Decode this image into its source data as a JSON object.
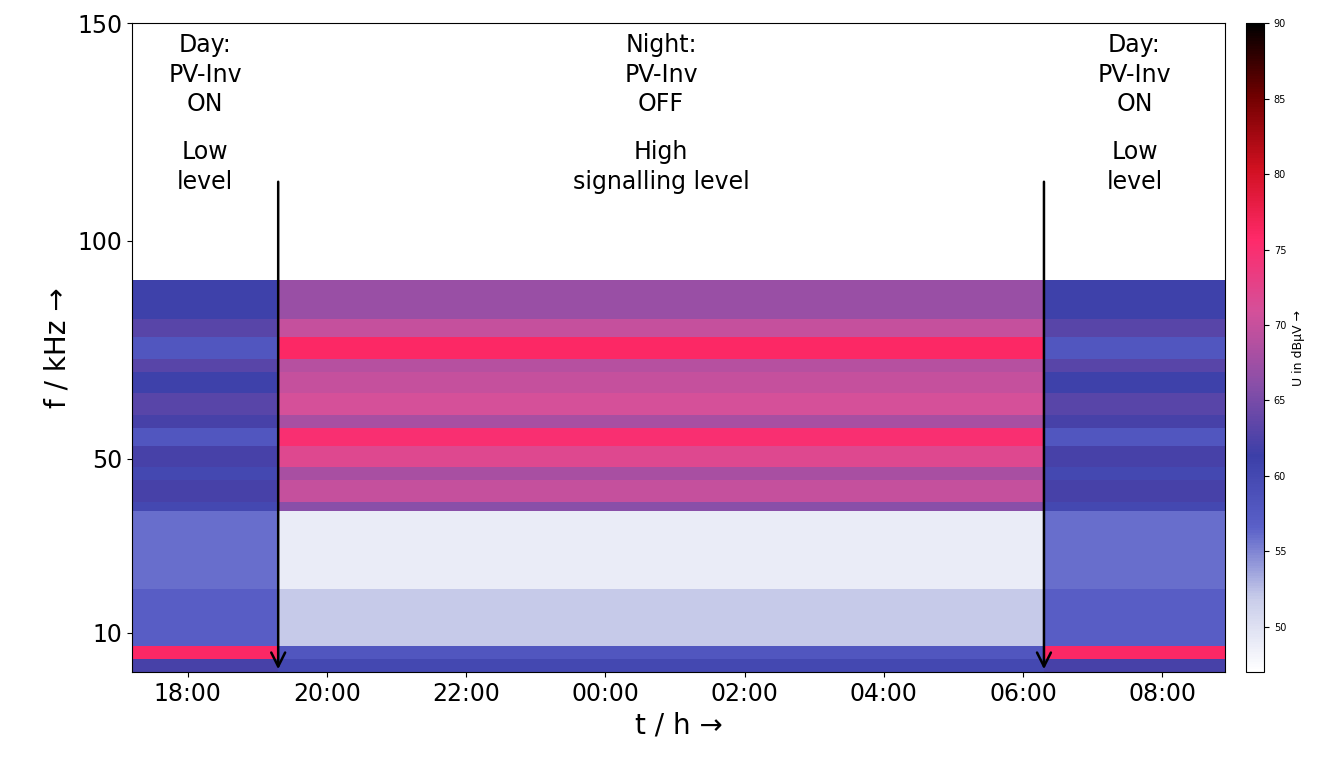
{
  "chart_data": {
    "type": "heatmap",
    "x_label": "t / h →",
    "y_label": "f / kHz →",
    "xlim": [
      17.2,
      32.9
    ],
    "xticks": [
      {
        "value": 18,
        "label": "18:00"
      },
      {
        "value": 20,
        "label": "20:00"
      },
      {
        "value": 22,
        "label": "22:00"
      },
      {
        "value": 24,
        "label": "00:00"
      },
      {
        "value": 26,
        "label": "02:00"
      },
      {
        "value": 28,
        "label": "04:00"
      },
      {
        "value": 30,
        "label": "06:00"
      },
      {
        "value": 32,
        "label": "08:00"
      }
    ],
    "ylim": [
      1,
      150
    ],
    "yticks": [
      10,
      50,
      100,
      150
    ],
    "time_edges": [
      17.2,
      19.3,
      30.3,
      32.9
    ],
    "frequency_edges": [
      1,
      4,
      7,
      20,
      38,
      40,
      45,
      48,
      53,
      57,
      60,
      65,
      70,
      73,
      78,
      82,
      91,
      150
    ],
    "cells": [
      [
        62,
        60,
        62
      ],
      [
        76,
        58,
        76
      ],
      [
        57,
        52,
        57
      ],
      [
        56,
        49,
        56
      ],
      [
        60,
        66,
        60
      ],
      [
        62,
        70,
        62
      ],
      [
        60,
        68,
        60
      ],
      [
        62,
        72,
        62
      ],
      [
        58,
        75,
        58
      ],
      [
        62,
        68,
        62
      ],
      [
        63,
        71,
        63
      ],
      [
        61,
        70,
        61
      ],
      [
        63,
        69,
        63
      ],
      [
        58,
        76,
        58
      ],
      [
        63,
        70,
        63
      ],
      [
        61,
        67,
        61
      ],
      [
        47,
        47,
        47
      ]
    ],
    "colorbar": {
      "label": "U in dBμV →",
      "range": [
        47,
        90
      ],
      "ticks": [
        50,
        55,
        60,
        65,
        70,
        75,
        80,
        85,
        90
      ]
    },
    "annotations": [
      {
        "title": "Day:\nPV-Inv\nON",
        "text": "Low\nlevel"
      },
      {
        "title": "Night:\nPV-Inv\nOFF",
        "text": "High\nsignalling level"
      },
      {
        "title": "Day:\nPV-Inv\nON",
        "text": "Low\nlevel"
      }
    ]
  }
}
